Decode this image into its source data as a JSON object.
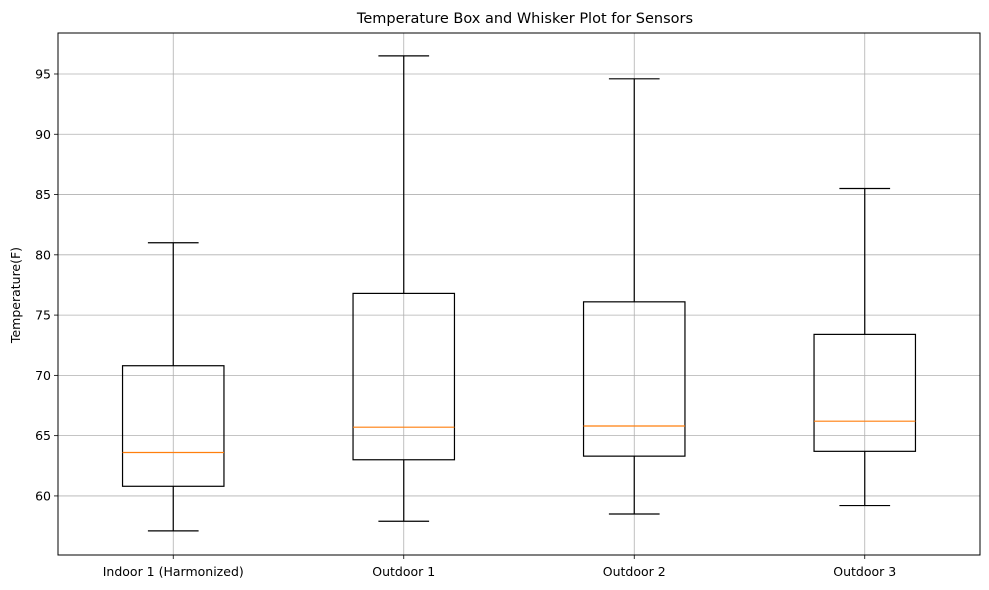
{
  "chart_data": {
    "type": "box",
    "title": "Temperature Box and Whisker Plot for Sensors",
    "xlabel": "",
    "ylabel": "Temperature(F)",
    "ylim": [
      55.1,
      98.4
    ],
    "yticks": [
      60,
      65,
      70,
      75,
      80,
      85,
      90,
      95
    ],
    "grid": true,
    "categories": [
      "Indoor 1 (Harmonized)",
      "Outdoor 1",
      "Outdoor 2",
      "Outdoor 3"
    ],
    "boxes": [
      {
        "category": "Indoor 1 (Harmonized)",
        "whisker_low": 57.1,
        "q1": 60.8,
        "median": 63.6,
        "q3": 70.8,
        "whisker_high": 81.0
      },
      {
        "category": "Outdoor 1",
        "whisker_low": 57.9,
        "q1": 63.0,
        "median": 65.7,
        "q3": 76.8,
        "whisker_high": 96.5
      },
      {
        "category": "Outdoor 2",
        "whisker_low": 58.5,
        "q1": 63.3,
        "median": 65.8,
        "q3": 76.1,
        "whisker_high": 94.6
      },
      {
        "category": "Outdoor 3",
        "whisker_low": 59.2,
        "q1": 63.7,
        "median": 66.2,
        "q3": 73.4,
        "whisker_high": 85.5
      }
    ],
    "colors": {
      "box": "#000000",
      "median": "#ff7f0e",
      "grid": "#b0b0b0",
      "axes": "#000000"
    }
  }
}
